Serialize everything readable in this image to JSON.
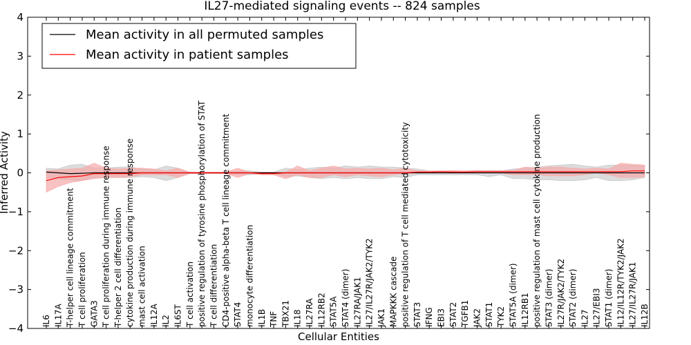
{
  "chart_data": {
    "type": "line",
    "title": "IL27-mediated signaling events -- 824 samples",
    "xlabel": "Cellular Entities",
    "ylabel": "Inferred Activity",
    "ylim": [
      -4,
      4
    ],
    "yticks": [
      {
        "value": 4,
        "label": "4"
      },
      {
        "value": 3,
        "label": "3"
      },
      {
        "value": 2,
        "label": "2"
      },
      {
        "value": 1,
        "label": "1"
      },
      {
        "value": 0,
        "label": "0"
      },
      {
        "value": -1,
        "label": "−1"
      },
      {
        "value": -2,
        "label": "−2"
      },
      {
        "value": -3,
        "label": "−3"
      },
      {
        "value": -4,
        "label": "−4"
      }
    ],
    "grid": false,
    "legend_position": "top-left",
    "categories": [
      "IL6",
      "IL17A",
      "T-helper cell lineage commitment",
      "T cell proliferation",
      "GATA3",
      "T cell proliferation during immune response",
      "T-helper 2 cell differentiation",
      "cytokine production during immune response",
      "mast cell activation",
      "IL12A",
      "IL2",
      "IL6ST",
      "T cell activation",
      "positive regulation of tyrosine phosphorylation of STAT",
      "T cell differentiation",
      "CD4-positive alpha-beta T cell lineage commitment",
      "STAT4",
      "monocyte differentiation",
      "IL1B",
      "TNF",
      "TBX21",
      "IL18",
      "IL27RA",
      "IL12RB2",
      "STAT5A",
      "STAT4 (dimer)",
      "IL27RA/JAK1",
      "IL27/IL27R/JAK2/TYK2",
      "JAK1",
      "MAPKKK cascade",
      "positive regulation of T cell mediated cytotoxicity",
      "STAT3",
      "IFNG",
      "EBI3",
      "STAT2",
      "TGFB1",
      "JAK2",
      "STAT1",
      "TYK2",
      "STAT5A (dimer)",
      "IL12RB1",
      "positive regulation of mast cell cytokine production",
      "STAT3 (dimer)",
      "IL27R/JAK2/TYK2",
      "STAT2 (dimer)",
      "IL27",
      "IL27/EBI3",
      "STAT1 (dimer)",
      "IL12/IL12R/TYK2/JAK2",
      "IL27/IL27R/JAK1",
      "IL12B"
    ],
    "series": [
      {
        "name": "Mean activity in all permuted samples",
        "color": "#000000",
        "band_color": "#bfbfbf",
        "values": [
          0.02,
          0.0,
          -0.02,
          -0.01,
          0.0,
          0.0,
          0.0,
          0.0,
          0.0,
          0.0,
          0.0,
          0.0,
          0.0,
          0.0,
          0.0,
          0.0,
          0.0,
          0.0,
          0.0,
          0.0,
          0.0,
          0.0,
          0.0,
          0.0,
          0.0,
          0.0,
          0.0,
          0.0,
          0.0,
          0.0,
          0.0,
          0.0,
          0.0,
          0.0,
          0.0,
          0.0,
          0.0,
          0.0,
          0.0,
          0.0,
          0.0,
          0.0,
          0.0,
          0.0,
          0.0,
          0.0,
          0.0,
          0.0,
          0.0,
          0.0,
          0.0
        ],
        "upper": [
          0.12,
          0.1,
          0.2,
          0.22,
          0.12,
          0.12,
          0.15,
          0.15,
          0.1,
          0.08,
          0.18,
          0.12,
          0.02,
          0.02,
          0.02,
          0.02,
          0.05,
          0.05,
          0.02,
          0.02,
          0.12,
          0.08,
          0.12,
          0.15,
          0.12,
          0.18,
          0.15,
          0.18,
          0.15,
          0.15,
          0.12,
          0.1,
          0.05,
          0.05,
          0.05,
          0.05,
          0.05,
          0.05,
          0.05,
          0.1,
          0.12,
          0.15,
          0.18,
          0.2,
          0.22,
          0.18,
          0.15,
          0.2,
          0.2,
          0.2,
          0.18
        ],
        "lower": [
          -0.12,
          -0.15,
          -0.18,
          -0.2,
          -0.12,
          -0.12,
          -0.12,
          -0.12,
          -0.1,
          -0.12,
          -0.2,
          -0.12,
          -0.02,
          -0.02,
          -0.02,
          -0.02,
          -0.05,
          -0.05,
          -0.02,
          -0.02,
          -0.1,
          -0.08,
          -0.12,
          -0.15,
          -0.12,
          -0.15,
          -0.12,
          -0.15,
          -0.15,
          -0.1,
          -0.12,
          -0.05,
          -0.05,
          -0.05,
          -0.05,
          -0.05,
          -0.05,
          -0.1,
          -0.05,
          -0.15,
          -0.15,
          -0.18,
          -0.18,
          -0.2,
          -0.2,
          -0.18,
          -0.12,
          -0.2,
          -0.2,
          -0.18,
          -0.12
        ]
      },
      {
        "name": "Mean activity in patient samples",
        "color": "#ff0000",
        "band_color": "#f7a8a8",
        "values": [
          -0.2,
          -0.12,
          -0.1,
          -0.08,
          -0.02,
          -0.02,
          -0.02,
          -0.02,
          0.0,
          0.0,
          0.0,
          0.0,
          0.0,
          0.0,
          0.0,
          0.0,
          0.0,
          0.0,
          -0.02,
          -0.02,
          0.0,
          0.0,
          0.0,
          0.0,
          0.0,
          0.0,
          0.0,
          0.0,
          0.0,
          0.0,
          0.0,
          0.02,
          0.02,
          0.03,
          0.02,
          0.02,
          0.03,
          0.03,
          0.03,
          0.03,
          0.03,
          0.03,
          0.03,
          0.03,
          0.03,
          0.03,
          0.03,
          0.03,
          0.03,
          0.05,
          0.05
        ],
        "upper": [
          0.05,
          0.08,
          0.1,
          0.12,
          0.25,
          0.12,
          0.1,
          0.12,
          0.12,
          0.1,
          0.05,
          0.12,
          0.02,
          0.02,
          0.02,
          0.02,
          0.12,
          0.02,
          0.02,
          0.02,
          0.02,
          0.18,
          0.05,
          0.12,
          0.18,
          0.1,
          0.12,
          0.1,
          0.12,
          0.08,
          0.12,
          0.05,
          0.05,
          0.05,
          0.06,
          0.05,
          0.06,
          0.06,
          0.06,
          0.06,
          0.15,
          0.12,
          0.15,
          0.15,
          0.12,
          0.1,
          0.12,
          0.1,
          0.25,
          0.22,
          0.2
        ],
        "lower": [
          -0.5,
          -0.35,
          -0.25,
          -0.2,
          -0.15,
          -0.12,
          -0.12,
          -0.1,
          -0.05,
          -0.05,
          -0.05,
          -0.12,
          -0.02,
          -0.02,
          -0.02,
          -0.02,
          -0.12,
          -0.02,
          -0.05,
          -0.05,
          -0.15,
          -0.05,
          -0.12,
          -0.12,
          -0.05,
          -0.1,
          -0.05,
          -0.08,
          -0.1,
          -0.05,
          -0.02,
          0.0,
          0.0,
          0.0,
          0.0,
          0.0,
          0.0,
          0.0,
          0.0,
          -0.05,
          -0.05,
          -0.05,
          -0.08,
          -0.08,
          -0.08,
          -0.05,
          0.0,
          -0.05,
          -0.12,
          -0.12,
          -0.1
        ]
      }
    ]
  }
}
